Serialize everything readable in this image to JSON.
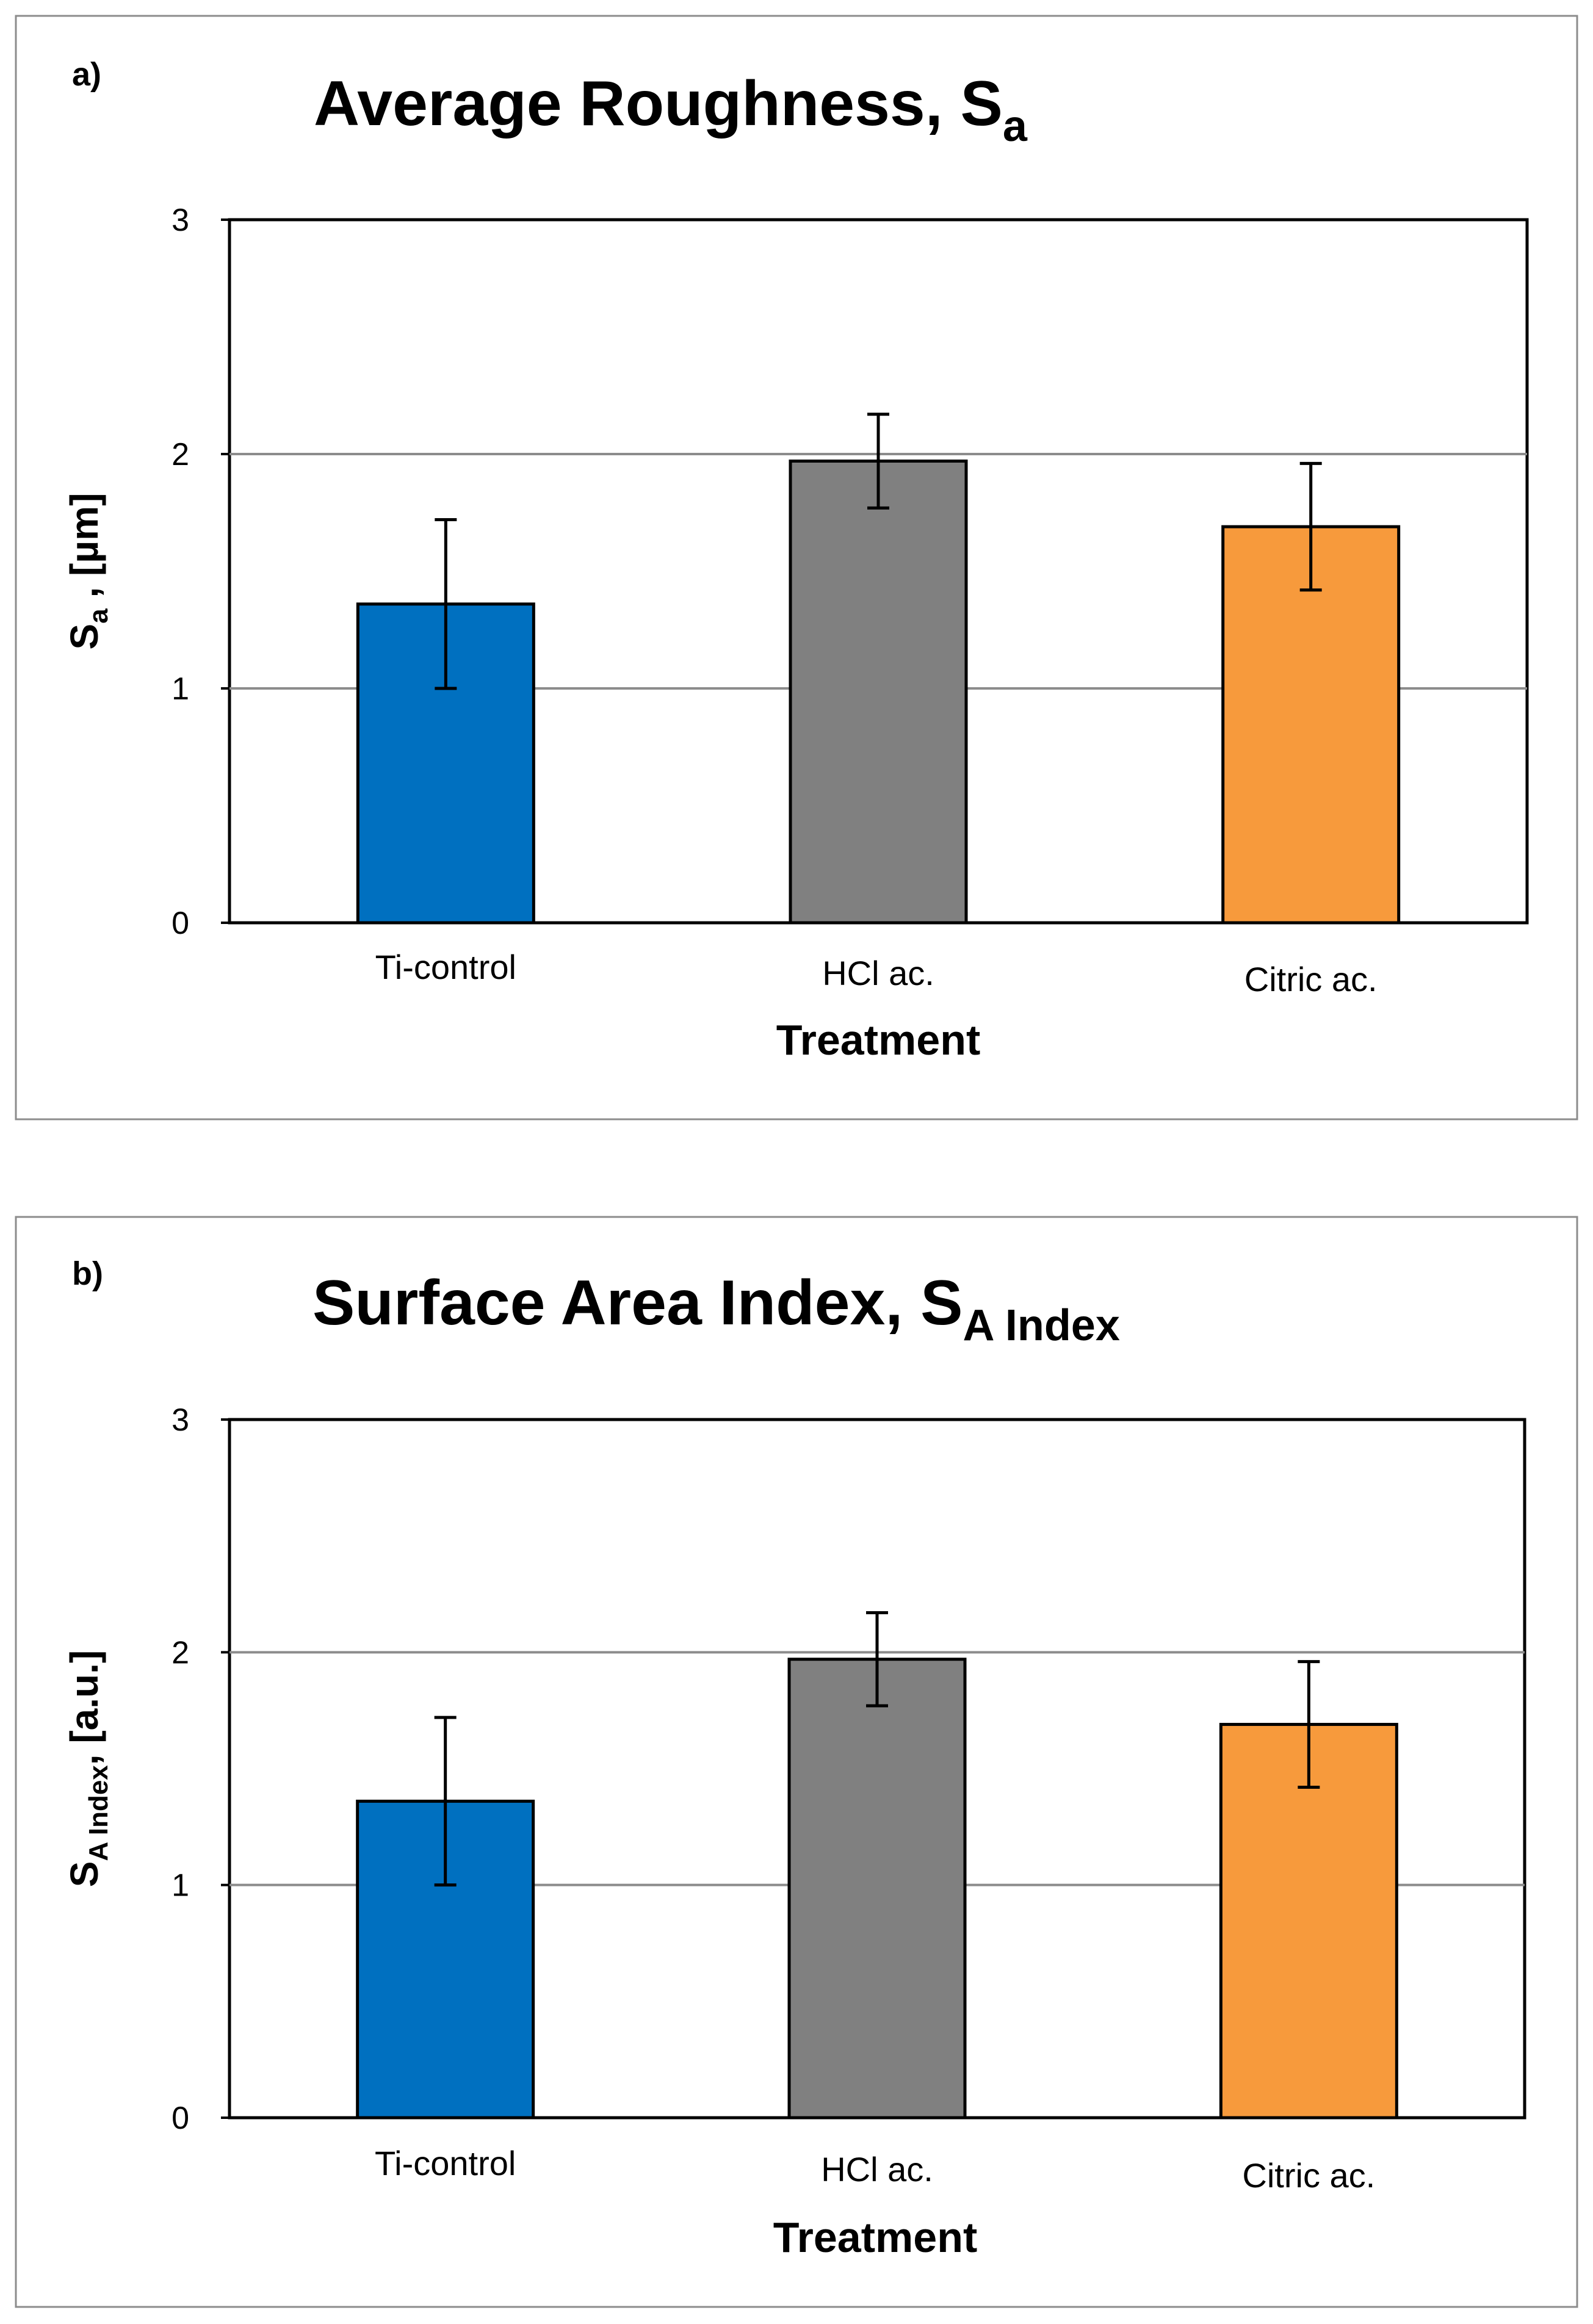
{
  "chart_data": [
    {
      "type": "bar",
      "panel_label": "a)",
      "title": "Average Roughness, S",
      "title_subscript": "a",
      "categories": [
        "Ti-control",
        "HCl ac.",
        "Citric ac."
      ],
      "values": [
        1.36,
        1.97,
        1.69
      ],
      "errors": [
        0.36,
        0.2,
        0.27
      ],
      "colors": [
        "#0070c0",
        "#808080",
        "#f79a3c"
      ],
      "xlabel": "Treatment",
      "ylabel_main": "S",
      "ylabel_sub": "a",
      "ylabel_rest": " , [µm]",
      "ylim": [
        0,
        3
      ],
      "yticks": [
        "0",
        "1",
        "2",
        "3"
      ],
      "grid": true
    },
    {
      "type": "bar",
      "panel_label": "b)",
      "title": "Surface Area Index, S",
      "title_subscript": "A Index",
      "categories": [
        "Ti-control",
        "HCl ac.",
        "Citric ac."
      ],
      "values": [
        1.36,
        1.97,
        1.69
      ],
      "errors": [
        0.36,
        0.2,
        0.27
      ],
      "colors": [
        "#0070c0",
        "#808080",
        "#f79a3c"
      ],
      "xlabel": "Treatment",
      "ylabel_main": "S",
      "ylabel_sub": "A Index",
      "ylabel_rest": ", [a.u.]",
      "ylim": [
        0,
        3
      ],
      "yticks": [
        "0",
        "1",
        "2",
        "3"
      ],
      "grid": true
    }
  ]
}
